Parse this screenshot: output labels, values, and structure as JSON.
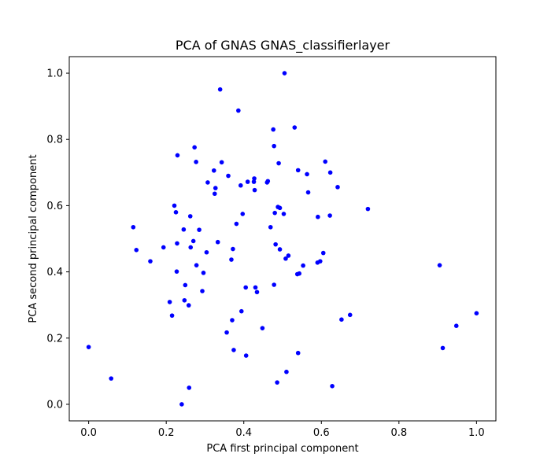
{
  "chart_data": {
    "type": "scatter",
    "title": "PCA of GNAS GNAS_classifierlayer",
    "xlabel": "PCA first principal component",
    "ylabel": "PCA second principal component",
    "xlim": [
      -0.05,
      1.05
    ],
    "ylim": [
      -0.05,
      1.05
    ],
    "xticks": [
      "0.0",
      "0.2",
      "0.4",
      "0.6",
      "0.8",
      "1.0"
    ],
    "yticks": [
      "0.0",
      "0.2",
      "0.4",
      "0.6",
      "0.8",
      "1.0"
    ],
    "grid": false,
    "marker_color": "#0000ff",
    "points": [
      [
        0.0,
        0.173
      ],
      [
        0.058,
        0.078
      ],
      [
        0.115,
        0.535
      ],
      [
        0.123,
        0.466
      ],
      [
        0.159,
        0.432
      ],
      [
        0.193,
        0.474
      ],
      [
        0.209,
        0.309
      ],
      [
        0.215,
        0.268
      ],
      [
        0.221,
        0.6
      ],
      [
        0.225,
        0.58
      ],
      [
        0.227,
        0.401
      ],
      [
        0.228,
        0.486
      ],
      [
        0.229,
        0.752
      ],
      [
        0.24,
        0.0
      ],
      [
        0.245,
        0.528
      ],
      [
        0.247,
        0.314
      ],
      [
        0.249,
        0.36
      ],
      [
        0.258,
        0.299
      ],
      [
        0.259,
        0.05
      ],
      [
        0.262,
        0.568
      ],
      [
        0.263,
        0.474
      ],
      [
        0.27,
        0.493
      ],
      [
        0.273,
        0.776
      ],
      [
        0.277,
        0.732
      ],
      [
        0.278,
        0.42
      ],
      [
        0.285,
        0.527
      ],
      [
        0.293,
        0.342
      ],
      [
        0.296,
        0.397
      ],
      [
        0.304,
        0.459
      ],
      [
        0.307,
        0.67
      ],
      [
        0.323,
        0.706
      ],
      [
        0.325,
        0.636
      ],
      [
        0.327,
        0.653
      ],
      [
        0.333,
        0.49
      ],
      [
        0.339,
        0.951
      ],
      [
        0.343,
        0.731
      ],
      [
        0.356,
        0.217
      ],
      [
        0.36,
        0.69
      ],
      [
        0.368,
        0.437
      ],
      [
        0.37,
        0.254
      ],
      [
        0.372,
        0.469
      ],
      [
        0.374,
        0.164
      ],
      [
        0.381,
        0.545
      ],
      [
        0.386,
        0.887
      ],
      [
        0.392,
        0.661
      ],
      [
        0.394,
        0.281
      ],
      [
        0.397,
        0.575
      ],
      [
        0.405,
        0.353
      ],
      [
        0.406,
        0.147
      ],
      [
        0.41,
        0.672
      ],
      [
        0.426,
        0.672
      ],
      [
        0.427,
        0.682
      ],
      [
        0.428,
        0.647
      ],
      [
        0.43,
        0.353
      ],
      [
        0.434,
        0.339
      ],
      [
        0.448,
        0.23
      ],
      [
        0.46,
        0.67
      ],
      [
        0.462,
        0.674
      ],
      [
        0.469,
        0.535
      ],
      [
        0.476,
        0.83
      ],
      [
        0.478,
        0.78
      ],
      [
        0.478,
        0.361
      ],
      [
        0.48,
        0.578
      ],
      [
        0.482,
        0.483
      ],
      [
        0.486,
        0.066
      ],
      [
        0.488,
        0.596
      ],
      [
        0.49,
        0.728
      ],
      [
        0.493,
        0.593
      ],
      [
        0.493,
        0.468
      ],
      [
        0.503,
        0.575
      ],
      [
        0.505,
        1.0
      ],
      [
        0.508,
        0.44
      ],
      [
        0.51,
        0.098
      ],
      [
        0.515,
        0.449
      ],
      [
        0.531,
        0.836
      ],
      [
        0.538,
        0.393
      ],
      [
        0.54,
        0.155
      ],
      [
        0.54,
        0.707
      ],
      [
        0.543,
        0.395
      ],
      [
        0.553,
        0.419
      ],
      [
        0.563,
        0.695
      ],
      [
        0.566,
        0.64
      ],
      [
        0.59,
        0.428
      ],
      [
        0.591,
        0.566
      ],
      [
        0.597,
        0.432
      ],
      [
        0.605,
        0.457
      ],
      [
        0.61,
        0.733
      ],
      [
        0.622,
        0.57
      ],
      [
        0.623,
        0.7
      ],
      [
        0.628,
        0.055
      ],
      [
        0.642,
        0.656
      ],
      [
        0.652,
        0.256
      ],
      [
        0.674,
        0.27
      ],
      [
        0.72,
        0.59
      ],
      [
        0.905,
        0.42
      ],
      [
        0.913,
        0.17
      ],
      [
        0.948,
        0.237
      ],
      [
        1.0,
        0.275
      ]
    ]
  }
}
